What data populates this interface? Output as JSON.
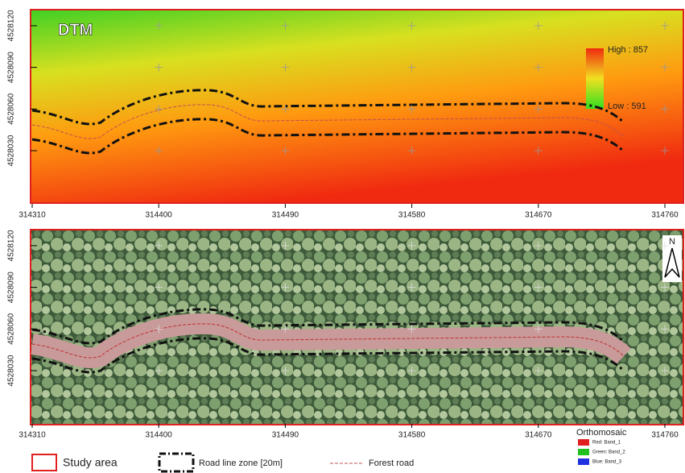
{
  "panels": [
    {
      "title": "DTM",
      "legend_high": "High : 857",
      "legend_low": "Low : 591",
      "yticks": [
        4528030,
        4528060,
        4528090,
        4528120
      ],
      "xticks": [
        314310,
        314400,
        314490,
        314580,
        314670,
        314760
      ]
    },
    {
      "north": "N",
      "yticks": [
        4528030,
        4528060,
        4528090,
        4528120
      ],
      "xticks": [
        314310,
        314400,
        314490,
        314580,
        314670,
        314760
      ]
    }
  ],
  "legend": {
    "study_area": "Study area",
    "road_zone": "Road line zone [20m]",
    "forest_road": "Forest road",
    "orthomosaic": {
      "title": "Orthomosaic",
      "bands": [
        "Red:  Band_1",
        "Green: Band_2",
        "Blue:  Band_3"
      ]
    }
  }
}
